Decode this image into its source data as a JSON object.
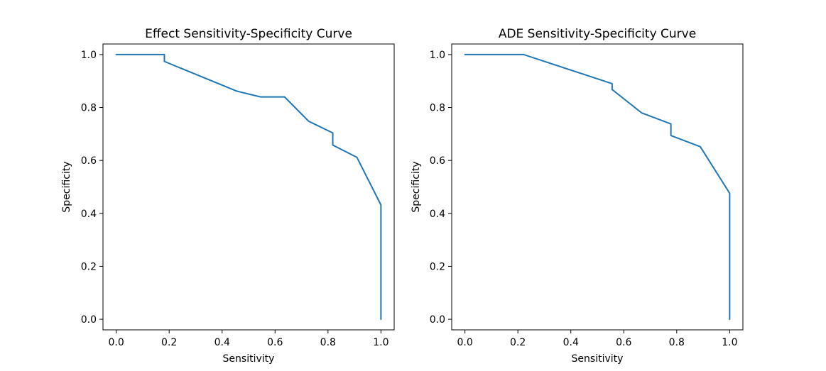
{
  "chart_data": [
    {
      "type": "line",
      "title": "Effect Sensitivity-Specificity Curve",
      "xlabel": "Sensitivity",
      "ylabel": "Specificity",
      "xlim": [
        -0.05,
        1.05
      ],
      "ylim": [
        -0.04,
        1.04
      ],
      "xticks": [
        "0.0",
        "0.2",
        "0.4",
        "0.6",
        "0.8",
        "1.0"
      ],
      "yticks": [
        "0.0",
        "0.2",
        "0.4",
        "0.6",
        "0.8",
        "1.0"
      ],
      "grid": false,
      "series": [
        {
          "color": "#1f77b4",
          "x": [
            0.0,
            0.182,
            0.182,
            0.455,
            0.545,
            0.636,
            0.727,
            0.818,
            0.818,
            0.909,
            1.0,
            1.0
          ],
          "y": [
            1.0,
            1.0,
            0.974,
            0.862,
            0.84,
            0.84,
            0.748,
            0.704,
            0.658,
            0.612,
            0.432,
            0.0
          ]
        }
      ]
    },
    {
      "type": "line",
      "title": "ADE Sensitivity-Specificity Curve",
      "xlabel": "Sensitivity",
      "ylabel": "Specificity",
      "xlim": [
        -0.05,
        1.05
      ],
      "ylim": [
        -0.04,
        1.04
      ],
      "xticks": [
        "0.0",
        "0.2",
        "0.4",
        "0.6",
        "0.8",
        "1.0"
      ],
      "yticks": [
        "0.0",
        "0.2",
        "0.4",
        "0.6",
        "0.8",
        "1.0"
      ],
      "grid": false,
      "series": [
        {
          "color": "#1f77b4",
          "x": [
            0.0,
            0.222,
            0.556,
            0.556,
            0.667,
            0.778,
            0.778,
            0.889,
            1.0,
            1.0
          ],
          "y": [
            1.0,
            1.0,
            0.89,
            0.868,
            0.78,
            0.738,
            0.694,
            0.652,
            0.476,
            0.0
          ]
        }
      ]
    }
  ]
}
